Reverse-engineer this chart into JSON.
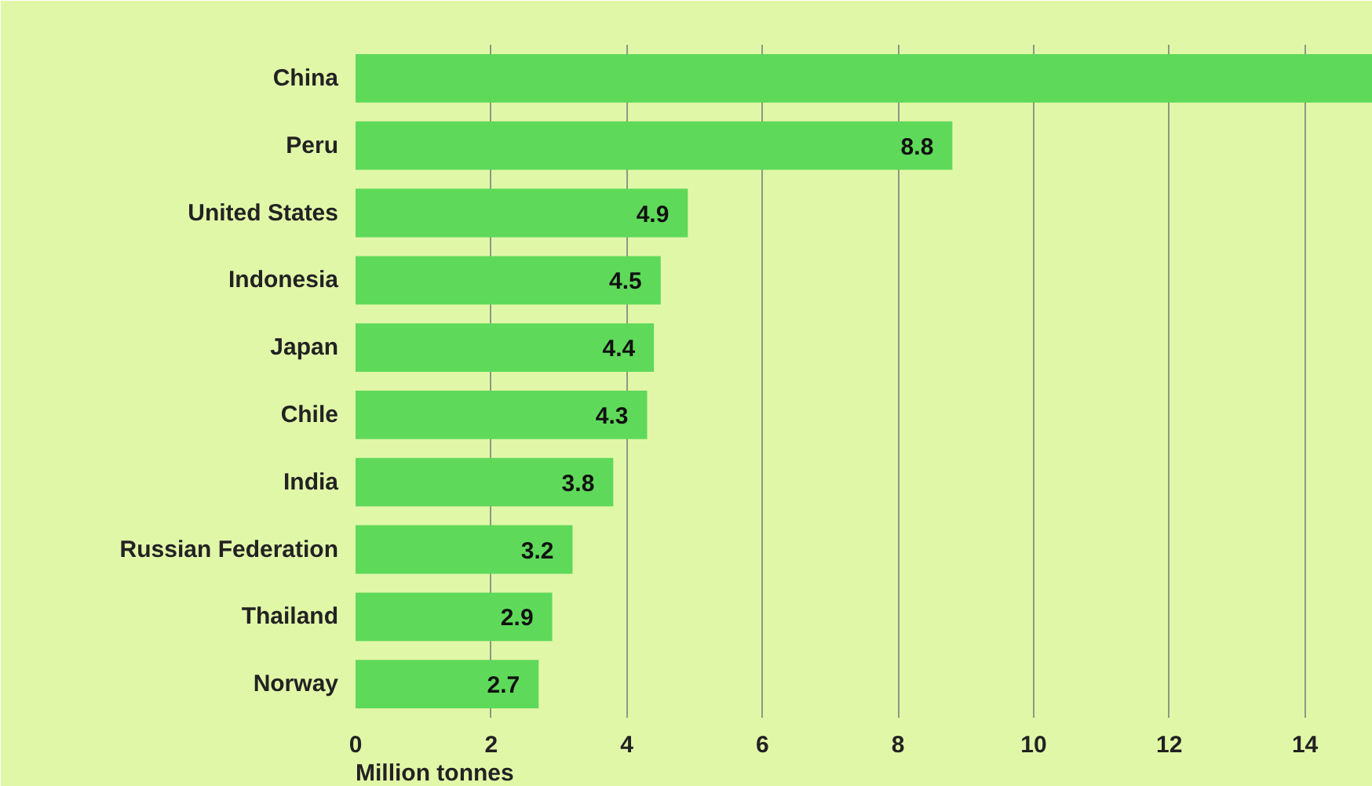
{
  "chart_data": {
    "type": "bar",
    "orientation": "horizontal",
    "xlabel": "Million tonnes",
    "categories": [
      "China",
      "Peru",
      "United States",
      "Indonesia",
      "Japan",
      "Chile",
      "India",
      "Russian Federation",
      "Thailand",
      "Norway"
    ],
    "values": [
      15,
      8.8,
      4.9,
      4.5,
      4.4,
      4.3,
      3.8,
      3.2,
      2.9,
      2.7
    ],
    "value_labels": [
      null,
      "8.8",
      "4.9",
      "4.5",
      "4.4",
      "4.3",
      "3.8",
      "3.2",
      "2.9",
      "2.7"
    ],
    "color": "#5fd95a",
    "xlim": [
      0,
      15
    ],
    "xticks": [
      0,
      2,
      4,
      6,
      8,
      10,
      12,
      14
    ],
    "grid": "x"
  }
}
